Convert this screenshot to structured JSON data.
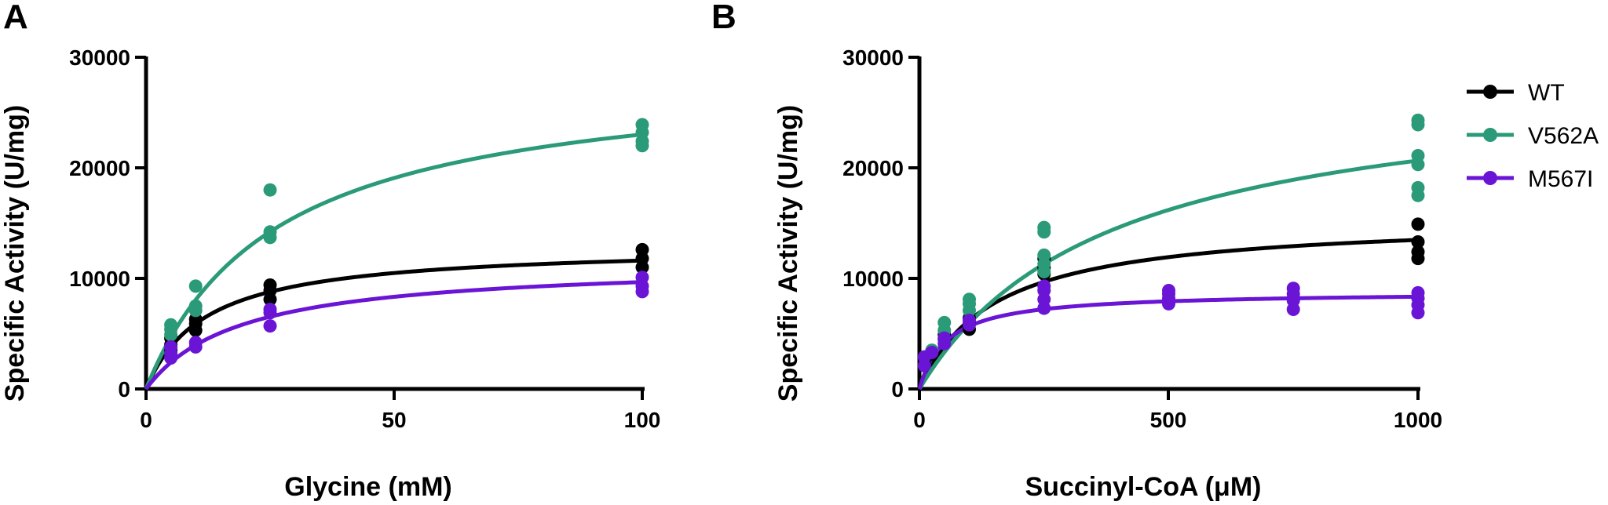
{
  "chart_data": [
    {
      "type": "scatter",
      "panel_label": "A",
      "title": "",
      "xlabel": "Glycine (mM)",
      "ylabel": "Specific Activity (U/mg)",
      "xlim": [
        0,
        100
      ],
      "ylim": [
        0,
        30000
      ],
      "x_ticks": [
        0,
        50,
        100
      ],
      "y_ticks": [
        0,
        10000,
        20000,
        30000
      ],
      "x_tick_labels": [
        "0",
        "50",
        "100"
      ],
      "y_tick_labels": [
        "0",
        "10000",
        "20000",
        "30000"
      ],
      "series": [
        {
          "name": "WT",
          "color": "#000000",
          "fit": {
            "model": "michaelis-menten",
            "vmax": 13000,
            "km": 12
          },
          "points": [
            {
              "x": 5,
              "y": 3500
            },
            {
              "x": 5,
              "y": 4000
            },
            {
              "x": 5,
              "y": 4600
            },
            {
              "x": 10,
              "y": 5300
            },
            {
              "x": 10,
              "y": 5900
            },
            {
              "x": 10,
              "y": 6300
            },
            {
              "x": 25,
              "y": 8100
            },
            {
              "x": 25,
              "y": 8900
            },
            {
              "x": 25,
              "y": 9400
            },
            {
              "x": 100,
              "y": 11000
            },
            {
              "x": 100,
              "y": 11800
            },
            {
              "x": 100,
              "y": 12600
            }
          ]
        },
        {
          "name": "V562A",
          "color": "#2a9a78",
          "fit": {
            "model": "michaelis-menten",
            "vmax": 29000,
            "km": 26
          },
          "points": [
            {
              "x": 5,
              "y": 4900
            },
            {
              "x": 5,
              "y": 5400
            },
            {
              "x": 5,
              "y": 5800
            },
            {
              "x": 10,
              "y": 7100
            },
            {
              "x": 10,
              "y": 7500
            },
            {
              "x": 10,
              "y": 9300
            },
            {
              "x": 25,
              "y": 13700
            },
            {
              "x": 25,
              "y": 14200
            },
            {
              "x": 25,
              "y": 18000
            },
            {
              "x": 100,
              "y": 22000
            },
            {
              "x": 100,
              "y": 22400
            },
            {
              "x": 100,
              "y": 23200
            },
            {
              "x": 100,
              "y": 23900
            }
          ]
        },
        {
          "name": "M567I",
          "color": "#6a14d6",
          "fit": {
            "model": "michaelis-menten",
            "vmax": 11500,
            "km": 19
          },
          "points": [
            {
              "x": 5,
              "y": 2800
            },
            {
              "x": 5,
              "y": 3200
            },
            {
              "x": 5,
              "y": 3800
            },
            {
              "x": 10,
              "y": 3800
            },
            {
              "x": 10,
              "y": 4200
            },
            {
              "x": 25,
              "y": 5700
            },
            {
              "x": 25,
              "y": 6900
            },
            {
              "x": 25,
              "y": 7200
            },
            {
              "x": 100,
              "y": 8800
            },
            {
              "x": 100,
              "y": 9300
            },
            {
              "x": 100,
              "y": 10100
            }
          ]
        }
      ]
    },
    {
      "type": "scatter",
      "panel_label": "B",
      "title": "",
      "xlabel": "Succinyl-CoA (μM)",
      "ylabel": "Specific Activity (U/mg)",
      "xlim": [
        0,
        1000
      ],
      "ylim": [
        0,
        30000
      ],
      "x_ticks": [
        0,
        500,
        1000
      ],
      "y_ticks": [
        0,
        10000,
        20000,
        30000
      ],
      "x_tick_labels": [
        "0",
        "500",
        "1000"
      ],
      "y_tick_labels": [
        "0",
        "10000",
        "20000",
        "30000"
      ],
      "series": [
        {
          "name": "WT",
          "color": "#000000",
          "fit": {
            "model": "michaelis-menten",
            "vmax": 15500,
            "km": 150
          },
          "points": [
            {
              "x": 10,
              "y": 2300
            },
            {
              "x": 10,
              "y": 2700
            },
            {
              "x": 25,
              "y": 3100
            },
            {
              "x": 50,
              "y": 4500
            },
            {
              "x": 50,
              "y": 4900
            },
            {
              "x": 100,
              "y": 5400
            },
            {
              "x": 100,
              "y": 5900
            },
            {
              "x": 100,
              "y": 6400
            },
            {
              "x": 250,
              "y": 10400
            },
            {
              "x": 250,
              "y": 11000
            },
            {
              "x": 250,
              "y": 11800
            },
            {
              "x": 1000,
              "y": 11800
            },
            {
              "x": 1000,
              "y": 12400
            },
            {
              "x": 1000,
              "y": 13300
            },
            {
              "x": 1000,
              "y": 14900
            }
          ]
        },
        {
          "name": "V562A",
          "color": "#2a9a78",
          "fit": {
            "model": "michaelis-menten",
            "vmax": 28500,
            "km": 380
          },
          "points": [
            {
              "x": 25,
              "y": 3500
            },
            {
              "x": 50,
              "y": 5300
            },
            {
              "x": 50,
              "y": 6000
            },
            {
              "x": 100,
              "y": 7100
            },
            {
              "x": 100,
              "y": 7700
            },
            {
              "x": 100,
              "y": 8100
            },
            {
              "x": 250,
              "y": 10600
            },
            {
              "x": 250,
              "y": 11300
            },
            {
              "x": 250,
              "y": 12100
            },
            {
              "x": 250,
              "y": 14200
            },
            {
              "x": 250,
              "y": 14600
            },
            {
              "x": 1000,
              "y": 17500
            },
            {
              "x": 1000,
              "y": 18200
            },
            {
              "x": 1000,
              "y": 20300
            },
            {
              "x": 1000,
              "y": 21100
            },
            {
              "x": 1000,
              "y": 23900
            },
            {
              "x": 1000,
              "y": 24300
            }
          ]
        },
        {
          "name": "M567I",
          "color": "#6a14d6",
          "fit": {
            "model": "michaelis-menten",
            "vmax": 8800,
            "km": 55
          },
          "points": [
            {
              "x": 10,
              "y": 2100
            },
            {
              "x": 10,
              "y": 2900
            },
            {
              "x": 25,
              "y": 3300
            },
            {
              "x": 50,
              "y": 4100
            },
            {
              "x": 50,
              "y": 4600
            },
            {
              "x": 100,
              "y": 5800
            },
            {
              "x": 100,
              "y": 6200
            },
            {
              "x": 250,
              "y": 7300
            },
            {
              "x": 250,
              "y": 8100
            },
            {
              "x": 250,
              "y": 8900
            },
            {
              "x": 250,
              "y": 9300
            },
            {
              "x": 500,
              "y": 7700
            },
            {
              "x": 500,
              "y": 8200
            },
            {
              "x": 500,
              "y": 8600
            },
            {
              "x": 500,
              "y": 8900
            },
            {
              "x": 750,
              "y": 7200
            },
            {
              "x": 750,
              "y": 8000
            },
            {
              "x": 750,
              "y": 8600
            },
            {
              "x": 750,
              "y": 9100
            },
            {
              "x": 1000,
              "y": 6900
            },
            {
              "x": 1000,
              "y": 7600
            },
            {
              "x": 1000,
              "y": 8200
            },
            {
              "x": 1000,
              "y": 8700
            }
          ]
        }
      ]
    }
  ],
  "legend": {
    "placement": "right",
    "entries": [
      "WT",
      "V562A",
      "M567I"
    ]
  }
}
